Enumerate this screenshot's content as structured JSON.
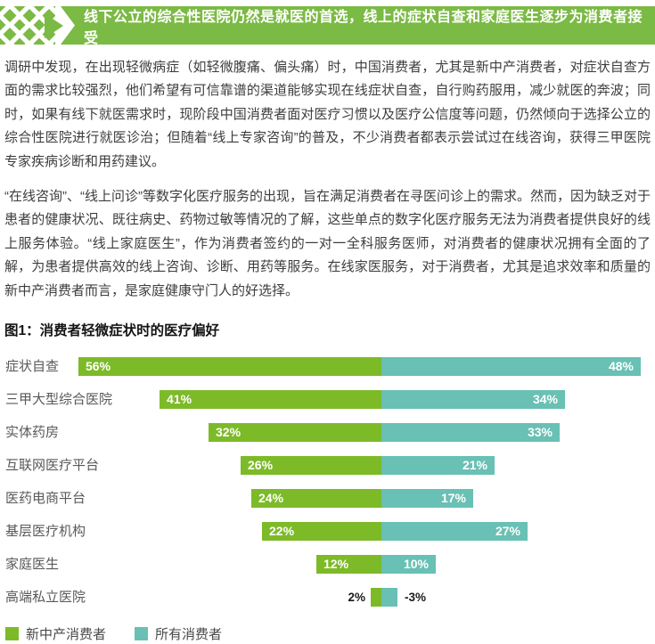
{
  "banner": {
    "text": "线下公立的综合性医院仍然是就医的首选，线上的症状自查和家庭医生逐步为消费者接受"
  },
  "paragraphs": [
    "调研中发现，在出现轻微病症（如轻微腹痛、偏头痛）时，中国消费者，尤其是新中产消费者，对症状自查方面的需求比较强烈，他们希望有可信靠谱的渠道能够实现在线症状自查，自行购药服用，减少就医的奔波；同时，如果有线下就医需求时，现阶段中国消费者面对医疗习惯以及医疗公信度等问题，仍然倾向于选择公立的综合性医院进行就医诊治；但随着“线上专家咨询”的普及，不少消费者都表示尝试过在线咨询，获得三甲医院专家疾病诊断和用药建议。",
    "“在线咨询”、“线上问诊”等数字化医疗服务的出现，旨在满足消费者在寻医问诊上的需求。然而，因为缺乏对于患者的健康状况、既往病史、药物过敏等情况的了解，这些单点的数字化医疗服务无法为消费者提供良好的线上服务体验。“线上家庭医生”，作为消费者签约的一对一全科服务医师，对消费者的健康状况拥有全面的了解，为患者提供高效的线上咨询、诊断、用药等服务。在线家医服务，对于消费者，尤其是追求效率和质量的新中产消费者而言，是家庭健康守门人的好选择。"
  ],
  "chart_data": {
    "type": "bar",
    "orientation": "diverging-horizontal",
    "title": "图1：消费者轻微症状时的医疗偏好",
    "categories": [
      "症状自查",
      "三甲大型综合医院",
      "实体药房",
      "互联网医疗平台",
      "医药电商平台",
      "基层医疗机构",
      "家庭医生",
      "高端私立医院"
    ],
    "series": [
      {
        "name": "新中产消费者",
        "color": "#7dba28",
        "side": "left",
        "values": [
          56,
          41,
          32,
          26,
          24,
          22,
          12,
          2
        ]
      },
      {
        "name": "所有消费者",
        "color": "#69c0b4",
        "side": "right",
        "values": [
          48,
          34,
          33,
          21,
          17,
          27,
          10,
          -3
        ]
      }
    ],
    "value_suffix": "%",
    "legend_position": "bottom",
    "axis": "none",
    "grid": false
  },
  "colors": {
    "banner_green": "#7bba44",
    "bar_green": "#7dba28",
    "bar_teal": "#69c0b4",
    "body_text": "#3d3d3d",
    "category_text": "#595959"
  }
}
